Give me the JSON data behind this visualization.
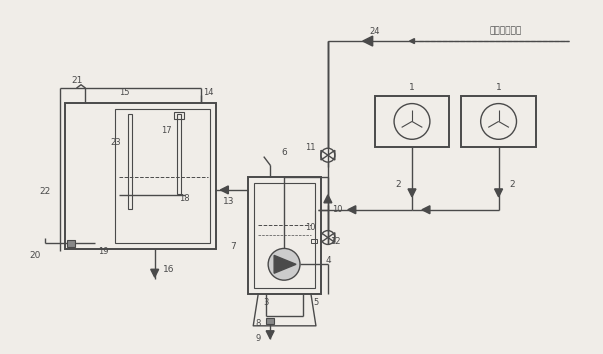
{
  "bg_color": "#f0ede8",
  "line_color": "#4a4a4a",
  "fig_width": 6.03,
  "fig_height": 3.54,
  "dpi": 100,
  "note_text": "接生活给水管"
}
